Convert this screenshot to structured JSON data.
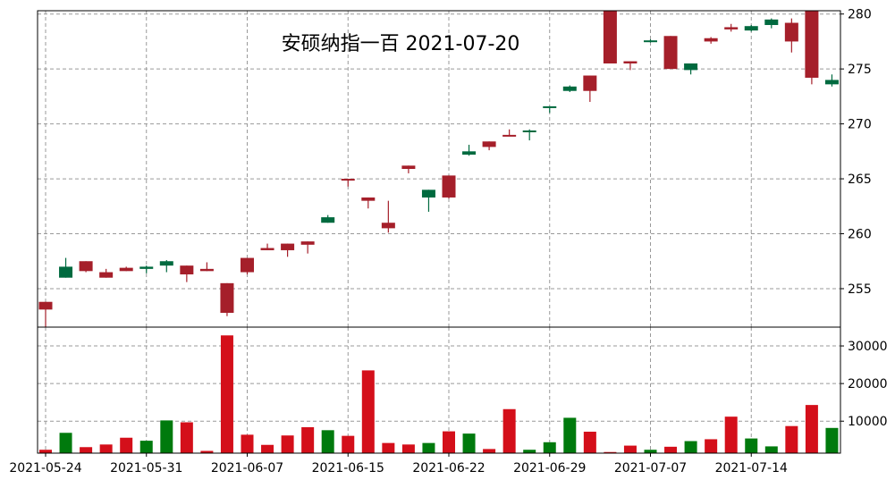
{
  "chart_data": {
    "type": "candlestick",
    "title": "安硕纳指一百 2021-07-20",
    "colors": {
      "up_candle": "#a51f2a",
      "down_candle": "#006a3f",
      "up_volume": "#d40f1a",
      "down_volume": "#007a0d",
      "grid": "#999999"
    },
    "grid": true,
    "price_ylim": [
      251.5,
      280.3
    ],
    "price_ticks": [
      255,
      260,
      265,
      270,
      275,
      280
    ],
    "volume_ylim": [
      1500,
      35000
    ],
    "volume_ticks": [
      10000,
      20000,
      30000
    ],
    "x_tick_labels": [
      {
        "index": 0,
        "label": "2021-05-24"
      },
      {
        "index": 5,
        "label": "2021-05-31"
      },
      {
        "index": 10,
        "label": "2021-06-07"
      },
      {
        "index": 15,
        "label": "2021-06-15"
      },
      {
        "index": 20,
        "label": "2021-06-22"
      },
      {
        "index": 25,
        "label": "2021-06-29"
      },
      {
        "index": 30,
        "label": "2021-07-07"
      },
      {
        "index": 35,
        "label": "2021-07-14"
      }
    ],
    "candles": [
      {
        "open": 253.1,
        "close": 253.8,
        "high": 253.8,
        "low": 251.5,
        "volume": 2400
      },
      {
        "open": 257.0,
        "close": 256.0,
        "high": 257.8,
        "low": 256.0,
        "volume": 6900
      },
      {
        "open": 256.6,
        "close": 257.5,
        "high": 257.5,
        "low": 256.5,
        "volume": 3100
      },
      {
        "open": 256.0,
        "close": 256.5,
        "high": 256.8,
        "low": 256.0,
        "volume": 3800
      },
      {
        "open": 256.6,
        "close": 256.9,
        "high": 257.0,
        "low": 256.6,
        "volume": 5600
      },
      {
        "open": 257.0,
        "close": 256.8,
        "high": 257.1,
        "low": 256.4,
        "volume": 4800
      },
      {
        "open": 257.5,
        "close": 257.1,
        "high": 257.6,
        "low": 256.5,
        "volume": 10200
      },
      {
        "open": 256.3,
        "close": 257.1,
        "high": 257.1,
        "low": 255.6,
        "volume": 9700
      },
      {
        "open": 256.6,
        "close": 256.8,
        "high": 257.4,
        "low": 256.6,
        "volume": 2100
      },
      {
        "open": 252.8,
        "close": 255.5,
        "high": 255.5,
        "low": 252.5,
        "volume": 32800
      },
      {
        "open": 256.5,
        "close": 257.8,
        "high": 257.8,
        "low": 256.3,
        "volume": 6400
      },
      {
        "open": 258.5,
        "close": 258.7,
        "high": 259.1,
        "low": 258.5,
        "volume": 3700
      },
      {
        "open": 258.5,
        "close": 259.1,
        "high": 259.1,
        "low": 257.9,
        "volume": 6200
      },
      {
        "open": 259.0,
        "close": 259.3,
        "high": 259.3,
        "low": 258.2,
        "volume": 8400
      },
      {
        "open": 261.5,
        "close": 261.0,
        "high": 261.7,
        "low": 261.0,
        "volume": 7600
      },
      {
        "open": 264.9,
        "close": 265.0,
        "high": 265.0,
        "low": 264.3,
        "volume": 6100
      },
      {
        "open": 263.0,
        "close": 263.3,
        "high": 263.3,
        "low": 262.3,
        "volume": 23500
      },
      {
        "open": 260.5,
        "close": 261.0,
        "high": 263.0,
        "low": 260.1,
        "volume": 4200
      },
      {
        "open": 265.9,
        "close": 266.2,
        "high": 266.2,
        "low": 265.5,
        "volume": 3800
      },
      {
        "open": 264.0,
        "close": 263.3,
        "high": 264.0,
        "low": 262.0,
        "volume": 4200
      },
      {
        "open": 263.3,
        "close": 265.3,
        "high": 265.3,
        "low": 263.2,
        "volume": 7300
      },
      {
        "open": 267.5,
        "close": 267.2,
        "high": 268.1,
        "low": 267.1,
        "volume": 6700
      },
      {
        "open": 267.9,
        "close": 268.4,
        "high": 268.4,
        "low": 267.6,
        "volume": 2600
      },
      {
        "open": 268.9,
        "close": 269.0,
        "high": 269.5,
        "low": 268.9,
        "volume": 13200
      },
      {
        "open": 269.4,
        "close": 269.3,
        "high": 269.5,
        "low": 268.5,
        "volume": 2400
      },
      {
        "open": 271.6,
        "close": 271.5,
        "high": 271.6,
        "low": 271.0,
        "volume": 4400
      },
      {
        "open": 273.4,
        "close": 273.0,
        "high": 273.5,
        "low": 272.9,
        "volume": 10900
      },
      {
        "open": 273.0,
        "close": 274.4,
        "high": 274.4,
        "low": 272.0,
        "volume": 7200
      },
      {
        "open": 275.5,
        "close": 280.3,
        "high": 280.3,
        "low": 275.5,
        "volume": 1800
      },
      {
        "open": 275.5,
        "close": 275.7,
        "high": 275.7,
        "low": 274.9,
        "volume": 3500
      },
      {
        "open": 277.6,
        "close": 277.5,
        "high": 277.7,
        "low": 277.4,
        "volume": 2400
      },
      {
        "open": 275.0,
        "close": 278.0,
        "high": 278.0,
        "low": 275.0,
        "volume": 3200
      },
      {
        "open": 275.5,
        "close": 274.9,
        "high": 275.5,
        "low": 274.5,
        "volume": 4700
      },
      {
        "open": 277.5,
        "close": 277.8,
        "high": 277.9,
        "low": 277.3,
        "volume": 5200
      },
      {
        "open": 278.6,
        "close": 278.8,
        "high": 279.1,
        "low": 278.4,
        "volume": 11200
      },
      {
        "open": 278.9,
        "close": 278.5,
        "high": 279.0,
        "low": 278.4,
        "volume": 5400
      },
      {
        "open": 279.5,
        "close": 279.0,
        "high": 279.6,
        "low": 278.7,
        "volume": 3300
      },
      {
        "open": 277.5,
        "close": 279.2,
        "high": 279.6,
        "low": 276.5,
        "volume": 8700
      },
      {
        "open": 274.2,
        "close": 280.3,
        "high": 280.3,
        "low": 273.6,
        "volume": 14300
      },
      {
        "open": 274.0,
        "close": 273.6,
        "high": 274.5,
        "low": 273.4,
        "volume": 8200
      }
    ]
  }
}
